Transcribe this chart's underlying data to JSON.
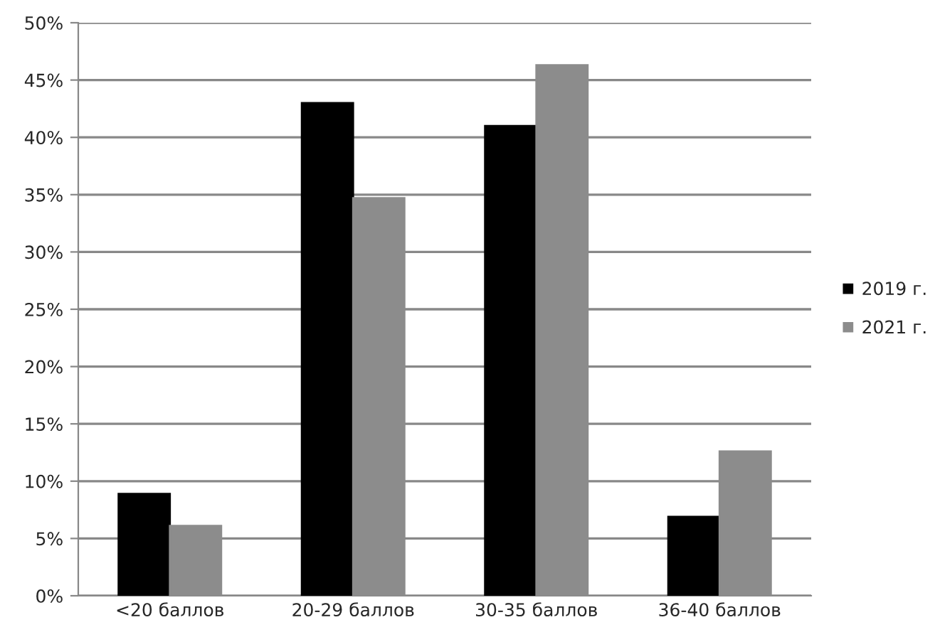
{
  "chart_data": {
    "type": "bar",
    "categories": [
      "<20 баллов",
      "20-29 баллов",
      "30-35 баллов",
      "36-40 баллов"
    ],
    "series": [
      {
        "name": "2019 г.",
        "color": "#000000",
        "values": [
          8.9,
          43.0,
          41.0,
          6.9
        ]
      },
      {
        "name": "2021 г.",
        "color": "#8c8c8c",
        "values": [
          6.1,
          34.7,
          46.3,
          12.6
        ]
      }
    ],
    "ylim": [
      0,
      50
    ],
    "yticks": [
      {
        "value": 0,
        "label": "0%"
      },
      {
        "value": 5,
        "label": "5%"
      },
      {
        "value": 10,
        "label": "10%"
      },
      {
        "value": 15,
        "label": "15%"
      },
      {
        "value": 20,
        "label": "20%"
      },
      {
        "value": 25,
        "label": "25%"
      },
      {
        "value": 30,
        "label": "30%"
      },
      {
        "value": 35,
        "label": "35%"
      },
      {
        "value": 40,
        "label": "40%"
      },
      {
        "value": 45,
        "label": "45%"
      },
      {
        "value": 50,
        "label": "50%"
      }
    ],
    "grid": "y",
    "legend": "right"
  }
}
